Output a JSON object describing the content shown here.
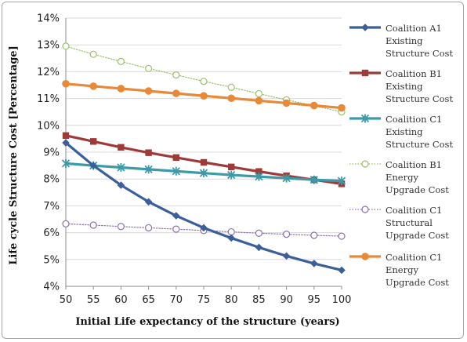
{
  "chart_data": {
    "type": "line",
    "title": "",
    "xlabel": "Initial Life expectancy of the structure (years)",
    "ylabel": "Life cycle Structure Cost  [Percentage]",
    "x": [
      50,
      55,
      60,
      65,
      70,
      75,
      80,
      85,
      90,
      95,
      100
    ],
    "xlim": [
      50,
      100
    ],
    "ylim": [
      4,
      14
    ],
    "y_ticks": [
      4,
      5,
      6,
      7,
      8,
      9,
      10,
      11,
      12,
      13,
      14
    ],
    "y_tick_labels": [
      "4%",
      "5%",
      "6%",
      "7%",
      "8%",
      "9%",
      "10%",
      "11%",
      "12%",
      "13%",
      "14%"
    ],
    "x_tick_labels": [
      "50",
      "55",
      "60",
      "65",
      "70",
      "75",
      "80",
      "85",
      "90",
      "95",
      "100"
    ],
    "grid": "horizontal",
    "legend_position": "right",
    "series": [
      {
        "name": "Coalition A1 Existing Structure Cost",
        "legend_lines": [
          "Coalition A1",
          "Existing",
          "Structure Cost"
        ],
        "color": "#3b5f9a",
        "marker": "diamond",
        "values": [
          9.35,
          8.5,
          7.77,
          7.15,
          6.63,
          6.18,
          5.8,
          5.45,
          5.13,
          4.85,
          4.6
        ]
      },
      {
        "name": "Coalition B1 Existing Structure Cost",
        "legend_lines": [
          "Coalition B1",
          "Existing",
          "Structure Cost"
        ],
        "color": "#9e3a38",
        "marker": "square",
        "values": [
          9.62,
          9.4,
          9.18,
          8.98,
          8.8,
          8.62,
          8.45,
          8.28,
          8.12,
          7.97,
          7.82
        ]
      },
      {
        "name": "Coalition C1 Existing Structure Cost",
        "legend_lines": [
          "Coalition C1",
          "Existing",
          "Structure Cost"
        ],
        "color": "#3d9aa8",
        "marker": "star",
        "values": [
          8.58,
          8.5,
          8.43,
          8.36,
          8.29,
          8.22,
          8.15,
          8.09,
          8.03,
          7.97,
          7.93
        ]
      },
      {
        "name": "Coalition B1 Energy Upgrade Cost",
        "legend_lines": [
          "Coalition B1",
          "Energy",
          "Upgrade Cost"
        ],
        "color": "#9bc06a",
        "marker": "circle-open",
        "dotted": true,
        "values": [
          12.95,
          12.65,
          12.38,
          12.12,
          11.88,
          11.64,
          11.42,
          11.18,
          10.95,
          10.73,
          10.5
        ]
      },
      {
        "name": "Coalition C1 Structural Upgrade Cost",
        "legend_lines": [
          "Coalition C1",
          "Structural",
          "Upgrade Cost"
        ],
        "color": "#8c6fb3",
        "marker": "circle-open",
        "dotted": true,
        "values": [
          6.33,
          6.28,
          6.23,
          6.18,
          6.13,
          6.08,
          6.03,
          5.98,
          5.94,
          5.9,
          5.87
        ]
      },
      {
        "name": "Coalition C1 Energy Upgrade Cost",
        "legend_lines": [
          "Coalition C1",
          "Energy",
          "Upgrade Cost"
        ],
        "color": "#e8893a",
        "marker": "circle",
        "values": [
          11.55,
          11.46,
          11.37,
          11.28,
          11.19,
          11.1,
          11.01,
          10.92,
          10.83,
          10.74,
          10.65
        ]
      }
    ]
  }
}
